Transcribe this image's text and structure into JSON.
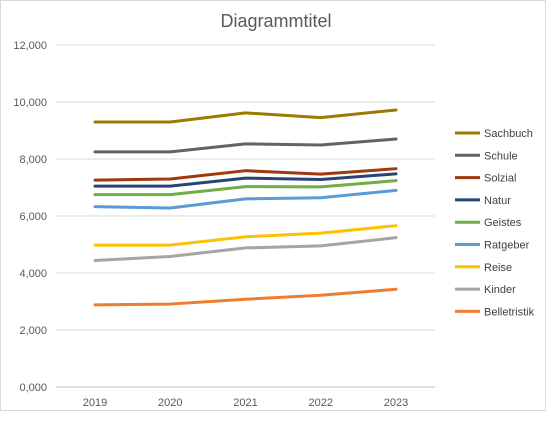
{
  "chart_data": {
    "type": "line",
    "title": "Diagrammtitel",
    "xlabel": "",
    "ylabel": "",
    "categories": [
      "2019",
      "2020",
      "2021",
      "2022",
      "2023"
    ],
    "ylim": [
      0,
      12000
    ],
    "yticks": [
      "0,000",
      "2,000",
      "4,000",
      "6,000",
      "8,000",
      "10,000",
      "12,000"
    ],
    "ytick_values": [
      0,
      2000,
      4000,
      6000,
      8000,
      10000,
      12000
    ],
    "grid": "horizontal",
    "legend_position": "right",
    "series": [
      {
        "name": "Sachbuch",
        "color": "#9C7A00",
        "values": [
          9300,
          9300,
          9620,
          9450,
          9720
        ]
      },
      {
        "name": "Schule",
        "color": "#636363",
        "values": [
          8250,
          8250,
          8530,
          8490,
          8700
        ]
      },
      {
        "name": "Solzial",
        "color": "#9E3A0E",
        "values": [
          7260,
          7300,
          7590,
          7470,
          7660
        ]
      },
      {
        "name": "Natur",
        "color": "#264478",
        "values": [
          7050,
          7050,
          7330,
          7280,
          7480
        ]
      },
      {
        "name": "Geistes",
        "color": "#70AD47",
        "values": [
          6750,
          6750,
          7030,
          7020,
          7240
        ]
      },
      {
        "name": "Ratgeber",
        "color": "#5B9BD5",
        "values": [
          6330,
          6280,
          6600,
          6640,
          6900
        ]
      },
      {
        "name": "Reise",
        "color": "#FFC000",
        "values": [
          4980,
          4980,
          5270,
          5400,
          5660
        ]
      },
      {
        "name": "Kinder",
        "color": "#A5A5A5",
        "values": [
          4440,
          4580,
          4880,
          4950,
          5240
        ]
      },
      {
        "name": "Belletristik",
        "color": "#ED7D31",
        "values": [
          2880,
          2910,
          3080,
          3220,
          3430
        ]
      }
    ]
  }
}
